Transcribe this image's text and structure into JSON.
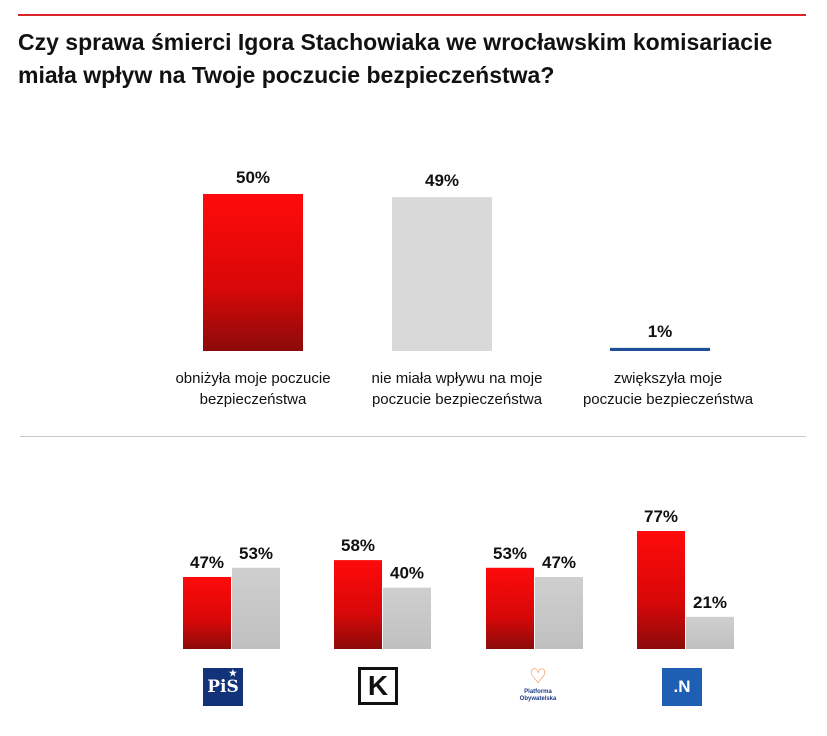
{
  "title": "Czy sprawa śmierci Igora Stachowiaka we wrocławskim komisariacie miała wpływ na Twoje poczucie bezpieczeństwa?",
  "colors": {
    "red": "#e80c0c",
    "red_dark": "#8c0a0a",
    "gray": "#c8c8c8",
    "gray_light": "#d9d9d9",
    "blue": "#1f4e99",
    "rule_red": "#d8262c"
  },
  "chart_data": [
    {
      "type": "bar",
      "title": "",
      "categories": [
        "obniżyła moje poczucie bezpieczeństwa",
        "nie miała wpływu na moje poczucie bezpieczeństwa",
        "zwiększyła moje poczucie bezpieczeństwa"
      ],
      "category_lines": [
        [
          "obniżyła moje poczucie",
          "bezpieczeństwa"
        ],
        [
          "nie miała wpływu na moje",
          "poczucie bezpieczeństwa"
        ],
        [
          "zwiększyła moje",
          "poczucie bezpieczeństwa"
        ]
      ],
      "values": [
        50,
        49,
        1
      ],
      "value_labels": [
        "50%",
        "49%",
        "1%"
      ],
      "bar_colors": [
        "red-gradient",
        "gray",
        "blue"
      ],
      "ylim": [
        0,
        50
      ],
      "grid": false,
      "legend": "none"
    },
    {
      "type": "bar",
      "title": "",
      "categories": [
        "PiS",
        "Kukiz'15",
        "Platforma Obywatelska",
        "Nowoczesna"
      ],
      "series": [
        {
          "values": [
            47,
            58,
            53,
            77
          ],
          "value_labels": [
            "47%",
            "58%",
            "53%",
            "77%"
          ],
          "color": "red-gradient"
        },
        {
          "values": [
            53,
            40,
            47,
            21
          ],
          "value_labels": [
            "53%",
            "40%",
            "47%",
            "21%"
          ],
          "color": "gray"
        }
      ],
      "ylim": [
        0,
        77
      ],
      "grid": false,
      "legend": "none"
    }
  ],
  "logos": {
    "pis": {
      "text": "PiS",
      "icon": "pis-logo"
    },
    "kukiz": {
      "text": "K",
      "icon": "kukiz-logo"
    },
    "po": {
      "text": "Platforma Obywatelska",
      "icon": "po-heart-logo"
    },
    "n": {
      "text": ".N",
      "icon": "nowoczesna-logo"
    }
  }
}
